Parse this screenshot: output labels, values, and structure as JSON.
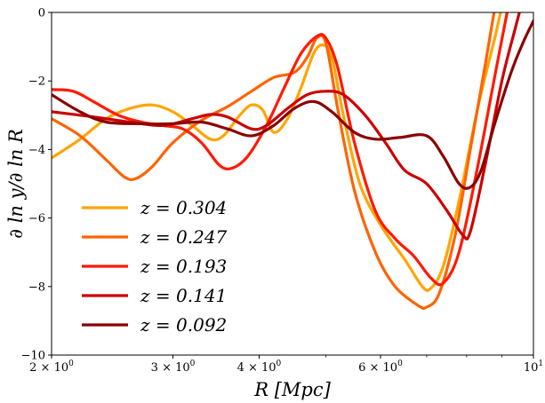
{
  "chart_data": {
    "type": "line",
    "xlabel": "R [Mpc]",
    "ylabel": "∂ ln y/∂ ln R",
    "xscale": "log",
    "xlim": [
      2,
      10
    ],
    "ylim": [
      -10,
      0
    ],
    "grid": false,
    "legend_position": "lower-left",
    "x_major_ticks": [
      {
        "value": 2,
        "label": "2 × 10",
        "exp": "0"
      },
      {
        "value": 3,
        "label": "3 × 10",
        "exp": "0"
      },
      {
        "value": 4,
        "label": "4 × 10",
        "exp": "0"
      },
      {
        "value": 6,
        "label": "6 × 10",
        "exp": "0"
      },
      {
        "value": 10,
        "label": "10",
        "exp": "1"
      }
    ],
    "x_minor_ticks": [
      5,
      7,
      8,
      9
    ],
    "y_ticks": [
      {
        "value": 0,
        "label": "0"
      },
      {
        "value": -2,
        "label": "−2"
      },
      {
        "value": -4,
        "label": "−4"
      },
      {
        "value": -6,
        "label": "−6"
      },
      {
        "value": -8,
        "label": "−8"
      },
      {
        "value": -10,
        "label": "−10"
      }
    ],
    "series": [
      {
        "name": "z = 0.304",
        "color": "#ffa500",
        "points": [
          [
            2.0,
            -4.25
          ],
          [
            2.2,
            -3.7
          ],
          [
            2.4,
            -3.1
          ],
          [
            2.6,
            -2.8
          ],
          [
            2.8,
            -2.7
          ],
          [
            3.0,
            -2.9
          ],
          [
            3.2,
            -3.3
          ],
          [
            3.4,
            -3.7
          ],
          [
            3.55,
            -3.6
          ],
          [
            3.75,
            -3.0
          ],
          [
            3.9,
            -2.7
          ],
          [
            4.05,
            -2.85
          ],
          [
            4.2,
            -3.5
          ],
          [
            4.4,
            -3.1
          ],
          [
            4.6,
            -2.2
          ],
          [
            4.8,
            -1.2
          ],
          [
            4.95,
            -0.95
          ],
          [
            5.1,
            -1.3
          ],
          [
            5.3,
            -3.0
          ],
          [
            5.6,
            -5.0
          ],
          [
            6.0,
            -6.2
          ],
          [
            6.5,
            -7.2
          ],
          [
            6.9,
            -8.0
          ],
          [
            7.1,
            -8.05
          ],
          [
            7.4,
            -7.4
          ],
          [
            7.8,
            -5.5
          ],
          [
            8.3,
            -2.8
          ],
          [
            8.8,
            -0.7
          ],
          [
            9.0,
            0.2
          ]
        ]
      },
      {
        "name": "z = 0.247",
        "color": "#ff6300",
        "points": [
          [
            2.0,
            -3.1
          ],
          [
            2.2,
            -3.6
          ],
          [
            2.4,
            -4.3
          ],
          [
            2.55,
            -4.8
          ],
          [
            2.65,
            -4.85
          ],
          [
            2.8,
            -4.5
          ],
          [
            3.0,
            -3.8
          ],
          [
            3.3,
            -3.15
          ],
          [
            3.6,
            -2.75
          ],
          [
            3.9,
            -2.3
          ],
          [
            4.2,
            -1.9
          ],
          [
            4.5,
            -1.75
          ],
          [
            4.7,
            -1.3
          ],
          [
            4.85,
            -0.75
          ],
          [
            5.0,
            -0.9
          ],
          [
            5.2,
            -2.8
          ],
          [
            5.5,
            -5.2
          ],
          [
            5.9,
            -7.0
          ],
          [
            6.3,
            -8.0
          ],
          [
            6.8,
            -8.55
          ],
          [
            7.0,
            -8.6
          ],
          [
            7.3,
            -8.2
          ],
          [
            7.7,
            -6.5
          ],
          [
            8.1,
            -4.0
          ],
          [
            8.5,
            -1.6
          ],
          [
            8.8,
            0.2
          ]
        ]
      },
      {
        "name": "z = 0.193",
        "color": "#ff1a00",
        "points": [
          [
            2.0,
            -2.25
          ],
          [
            2.15,
            -2.3
          ],
          [
            2.3,
            -2.6
          ],
          [
            2.5,
            -3.0
          ],
          [
            2.7,
            -3.2
          ],
          [
            2.9,
            -3.3
          ],
          [
            3.1,
            -3.4
          ],
          [
            3.3,
            -3.8
          ],
          [
            3.5,
            -4.45
          ],
          [
            3.65,
            -4.55
          ],
          [
            3.85,
            -4.2
          ],
          [
            4.1,
            -3.3
          ],
          [
            4.35,
            -2.2
          ],
          [
            4.6,
            -1.2
          ],
          [
            4.85,
            -0.7
          ],
          [
            5.0,
            -0.75
          ],
          [
            5.2,
            -1.6
          ],
          [
            5.5,
            -3.8
          ],
          [
            5.9,
            -5.8
          ],
          [
            6.3,
            -6.6
          ],
          [
            6.7,
            -7.1
          ],
          [
            7.1,
            -7.75
          ],
          [
            7.4,
            -7.9
          ],
          [
            7.8,
            -7.0
          ],
          [
            8.3,
            -4.5
          ],
          [
            8.8,
            -1.8
          ],
          [
            9.2,
            0.2
          ]
        ]
      },
      {
        "name": "z = 0.141",
        "color": "#cc0000",
        "points": [
          [
            2.0,
            -2.9
          ],
          [
            2.3,
            -3.05
          ],
          [
            2.6,
            -3.2
          ],
          [
            2.9,
            -3.3
          ],
          [
            3.2,
            -3.1
          ],
          [
            3.4,
            -2.98
          ],
          [
            3.6,
            -3.05
          ],
          [
            3.9,
            -3.4
          ],
          [
            4.1,
            -3.3
          ],
          [
            4.4,
            -2.8
          ],
          [
            4.7,
            -2.4
          ],
          [
            5.0,
            -2.3
          ],
          [
            5.3,
            -2.4
          ],
          [
            5.7,
            -3.0
          ],
          [
            6.1,
            -3.8
          ],
          [
            6.5,
            -4.6
          ],
          [
            7.0,
            -5.0
          ],
          [
            7.5,
            -5.8
          ],
          [
            7.9,
            -6.5
          ],
          [
            8.1,
            -6.4
          ],
          [
            8.5,
            -4.5
          ],
          [
            9.0,
            -2.0
          ],
          [
            9.4,
            -0.5
          ],
          [
            9.6,
            0.2
          ]
        ]
      },
      {
        "name": "z = 0.092",
        "color": "#8b0000",
        "points": [
          [
            2.0,
            -2.4
          ],
          [
            2.2,
            -2.9
          ],
          [
            2.4,
            -3.2
          ],
          [
            2.7,
            -3.25
          ],
          [
            3.0,
            -3.25
          ],
          [
            3.3,
            -3.2
          ],
          [
            3.6,
            -3.4
          ],
          [
            3.9,
            -3.6
          ],
          [
            4.2,
            -3.3
          ],
          [
            4.5,
            -2.8
          ],
          [
            4.8,
            -2.6
          ],
          [
            5.1,
            -2.9
          ],
          [
            5.5,
            -3.5
          ],
          [
            5.9,
            -3.7
          ],
          [
            6.4,
            -3.65
          ],
          [
            7.0,
            -3.6
          ],
          [
            7.4,
            -4.2
          ],
          [
            7.8,
            -5.0
          ],
          [
            8.1,
            -5.1
          ],
          [
            8.4,
            -4.6
          ],
          [
            8.8,
            -3.2
          ],
          [
            9.3,
            -1.7
          ],
          [
            9.7,
            -0.8
          ],
          [
            10.0,
            -0.25
          ]
        ]
      }
    ]
  }
}
